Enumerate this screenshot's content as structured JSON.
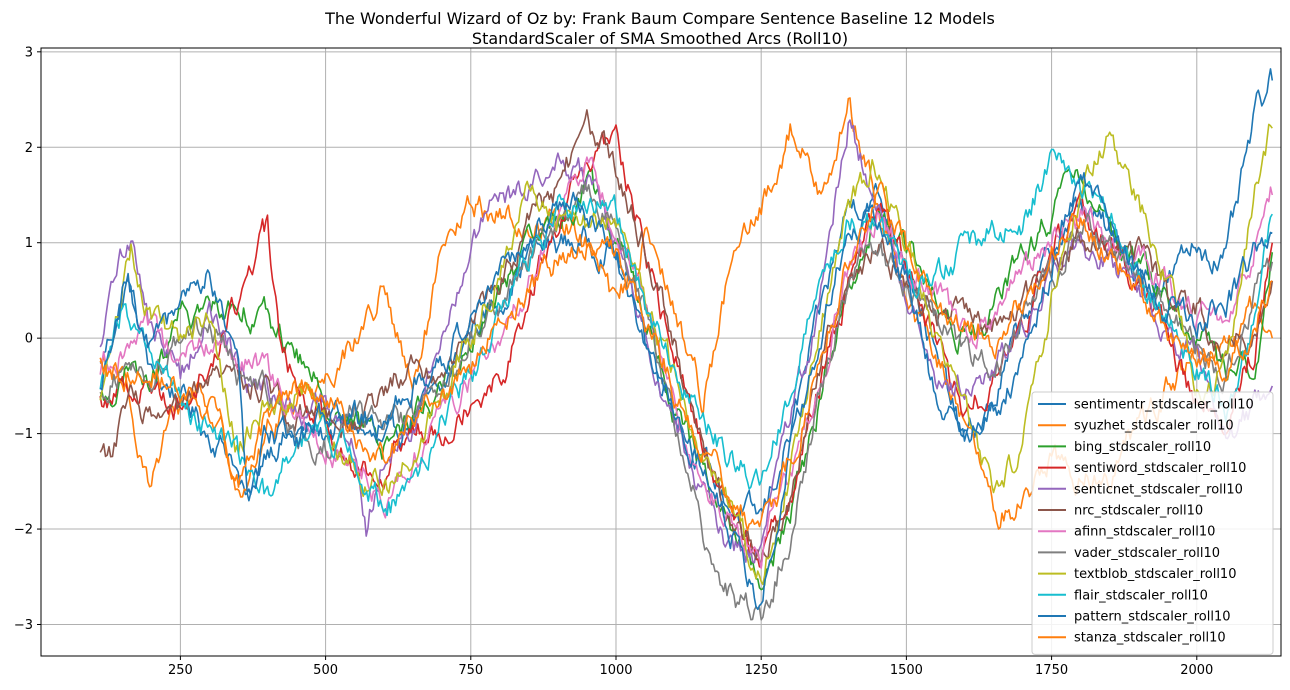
{
  "chart_data": {
    "type": "line",
    "title": "The Wonderful Wizard of Oz by: Frank Baum Compare Sentence Baseline 12 Models",
    "subtitle": "StandardScaler of SMA Smoothed Arcs (Roll10)",
    "xlabel": "",
    "ylabel": "",
    "xlim": [
      10,
      2145
    ],
    "ylim": [
      -3.33,
      3.04
    ],
    "xticks": [
      250,
      500,
      750,
      1000,
      1250,
      1500,
      1750,
      2000
    ],
    "xtick_labels": [
      "250",
      "500",
      "750",
      "1000",
      "1250",
      "1500",
      "1750",
      "2000"
    ],
    "yticks": [
      3,
      2,
      1,
      0,
      -1,
      -2,
      -3
    ],
    "ytick_labels": [
      "3",
      "2",
      "1",
      "0",
      "−1",
      "−2",
      "−3"
    ],
    "grid": true,
    "legend_position": "lower right",
    "series": [
      {
        "name": "sentimentr_stdscaler_roll10",
        "color": "#1f77b4",
        "x": [
          112,
          160,
          200,
          250,
          300,
          340,
          365,
          400,
          450,
          500,
          550,
          600,
          650,
          700,
          750,
          800,
          850,
          900,
          950,
          1000,
          1050,
          1100,
          1150,
          1200,
          1250,
          1300,
          1350,
          1400,
          1450,
          1500,
          1550,
          1600,
          1650,
          1700,
          1750,
          1800,
          1850,
          1900,
          1950,
          2000,
          2050,
          2100,
          2130
        ],
        "y": [
          -0.3,
          0.6,
          -0.4,
          -0.6,
          -1.0,
          -1.2,
          -1.8,
          -1.1,
          -1.0,
          -1.0,
          -0.9,
          -1.2,
          -0.8,
          -0.6,
          0.1,
          0.4,
          0.9,
          1.0,
          1.0,
          0.9,
          0.0,
          -0.7,
          -1.3,
          -1.8,
          -1.9,
          -1.0,
          0.2,
          1.4,
          1.5,
          0.9,
          -0.2,
          -1.1,
          -0.7,
          0.2,
          0.9,
          1.4,
          1.1,
          0.7,
          0.6,
          1.0,
          0.8,
          2.3,
          2.7
        ]
      },
      {
        "name": "syuzhet_stdscaler_roll10",
        "color": "#ff7f0e",
        "x": [
          112,
          150,
          200,
          240,
          280,
          320,
          360,
          400,
          450,
          500,
          550,
          600,
          650,
          700,
          750,
          800,
          850,
          900,
          950,
          1000,
          1050,
          1100,
          1150,
          1200,
          1250,
          1300,
          1350,
          1400,
          1450,
          1500,
          1550,
          1600,
          1650,
          1700,
          1750,
          1800,
          1850,
          1900,
          1950,
          2000,
          2050,
          2100,
          2130
        ],
        "y": [
          -0.3,
          -0.5,
          -1.5,
          -0.8,
          -0.5,
          -1.0,
          -1.6,
          -1.0,
          -0.6,
          -0.4,
          0.0,
          0.5,
          -0.6,
          0.8,
          1.4,
          1.3,
          1.1,
          1.3,
          1.0,
          0.3,
          1.1,
          0.3,
          -0.6,
          0.8,
          1.3,
          2.2,
          1.6,
          2.4,
          1.4,
          0.4,
          -0.2,
          -0.8,
          -1.9,
          -1.7,
          -1.2,
          -1.5,
          -1.4,
          -0.9,
          -0.5,
          -0.2,
          -0.2,
          0.3,
          0.0
        ]
      },
      {
        "name": "bing_stdscaler_roll10",
        "color": "#2ca02c",
        "x": [
          112,
          160,
          200,
          250,
          300,
          350,
          400,
          450,
          500,
          550,
          600,
          650,
          700,
          750,
          800,
          850,
          900,
          950,
          1000,
          1050,
          1100,
          1150,
          1200,
          1250,
          1300,
          1350,
          1400,
          1450,
          1500,
          1550,
          1600,
          1650,
          1700,
          1750,
          1800,
          1850,
          1900,
          1950,
          2000,
          2050,
          2100,
          2130
        ],
        "y": [
          -0.7,
          -0.4,
          -0.5,
          0.2,
          0.3,
          0.4,
          0.2,
          -0.2,
          -0.6,
          -0.9,
          -1.1,
          -0.8,
          -0.5,
          -0.1,
          0.5,
          0.9,
          1.2,
          1.6,
          1.1,
          0.2,
          -0.7,
          -1.4,
          -2.0,
          -2.6,
          -1.8,
          -0.7,
          0.6,
          1.3,
          0.9,
          0.4,
          0.0,
          0.2,
          0.9,
          1.3,
          1.7,
          1.2,
          0.8,
          0.4,
          0.0,
          -0.3,
          -0.3,
          0.9
        ]
      },
      {
        "name": "sentiword_stdscaler_roll10",
        "color": "#d62728",
        "x": [
          112,
          150,
          200,
          250,
          300,
          350,
          380,
          400,
          420,
          450,
          500,
          550,
          600,
          650,
          700,
          750,
          800,
          850,
          900,
          950,
          1000,
          1050,
          1100,
          1150,
          1200,
          1250,
          1300,
          1350,
          1400,
          1450,
          1500,
          1550,
          1600,
          1650,
          1700,
          1750,
          1800,
          1850,
          1900,
          1950,
          2000,
          2050,
          2100,
          2130
        ],
        "y": [
          -0.7,
          -0.5,
          -0.5,
          -0.7,
          -0.3,
          0.4,
          0.9,
          1.1,
          0.0,
          -0.5,
          -0.8,
          -1.4,
          -1.3,
          -1.0,
          -0.9,
          -0.6,
          -0.4,
          0.4,
          1.2,
          1.8,
          2.1,
          0.9,
          -0.2,
          -1.1,
          -1.9,
          -2.3,
          -1.6,
          -0.5,
          0.6,
          1.4,
          0.8,
          0.0,
          -0.8,
          -0.4,
          0.1,
          0.9,
          1.4,
          1.0,
          0.5,
          0.0,
          -0.7,
          -0.8,
          -0.1,
          1.0
        ]
      },
      {
        "name": "senticnet_stdscaler_roll10",
        "color": "#9467bd",
        "x": [
          112,
          140,
          165,
          200,
          250,
          300,
          350,
          400,
          450,
          500,
          550,
          570,
          600,
          650,
          700,
          750,
          800,
          850,
          900,
          950,
          1000,
          1050,
          1100,
          1150,
          1200,
          1250,
          1300,
          1350,
          1400,
          1450,
          1500,
          1550,
          1600,
          1650,
          1700,
          1750,
          1800,
          1850,
          1900,
          1950,
          2000,
          2050,
          2100,
          2130
        ],
        "y": [
          -0.2,
          0.7,
          1.1,
          0.1,
          -0.4,
          0.3,
          -0.3,
          -0.6,
          -0.8,
          -0.7,
          -1.1,
          -2.0,
          -1.2,
          -0.9,
          -0.1,
          1.0,
          1.4,
          1.6,
          1.8,
          1.7,
          0.9,
          0.1,
          -0.9,
          -1.6,
          -2.2,
          -2.3,
          -0.8,
          0.3,
          2.3,
          1.4,
          0.5,
          -0.3,
          -0.5,
          -0.4,
          0.1,
          0.8,
          1.0,
          0.8,
          0.5,
          -0.1,
          -0.2,
          -1.1,
          -0.7,
          -0.5
        ]
      },
      {
        "name": "nrc_stdscaler_roll10",
        "color": "#8c564b",
        "x": [
          112,
          130,
          170,
          200,
          250,
          300,
          350,
          400,
          450,
          500,
          550,
          600,
          650,
          700,
          750,
          800,
          850,
          900,
          950,
          1000,
          1050,
          1100,
          1150,
          1200,
          1250,
          1300,
          1350,
          1400,
          1450,
          1500,
          1550,
          1600,
          1650,
          1700,
          1750,
          1800,
          1850,
          1900,
          1950,
          2000,
          2050,
          2100,
          2130
        ],
        "y": [
          -1.1,
          -1.2,
          -0.6,
          -0.9,
          -0.8,
          -0.5,
          -0.4,
          -0.5,
          -0.8,
          -0.7,
          -0.9,
          -0.6,
          -0.2,
          -0.4,
          0.2,
          0.6,
          1.2,
          1.6,
          2.2,
          1.8,
          1.0,
          0.0,
          -1.2,
          -2.0,
          -2.3,
          -1.7,
          -0.3,
          0.6,
          1.0,
          0.6,
          0.2,
          0.3,
          0.1,
          0.3,
          0.7,
          1.1,
          1.0,
          0.9,
          0.4,
          0.3,
          -0.1,
          0.1,
          0.6
        ]
      },
      {
        "name": "afinn_stdscaler_roll10",
        "color": "#e377c2",
        "x": [
          112,
          150,
          200,
          250,
          300,
          350,
          400,
          450,
          500,
          550,
          600,
          650,
          700,
          750,
          800,
          850,
          900,
          950,
          1000,
          1050,
          1100,
          1150,
          1200,
          1250,
          1300,
          1350,
          1400,
          1450,
          1500,
          1550,
          1600,
          1650,
          1700,
          1750,
          1800,
          1850,
          1900,
          1950,
          2000,
          2050,
          2100,
          2130
        ],
        "y": [
          -0.3,
          -0.1,
          0.0,
          -0.3,
          0.0,
          -0.2,
          -0.4,
          -0.9,
          -1.1,
          -1.2,
          -1.7,
          -1.3,
          -0.8,
          -0.4,
          -0.1,
          0.6,
          1.3,
          1.8,
          1.2,
          0.3,
          -0.6,
          -1.5,
          -2.0,
          -2.2,
          -1.5,
          -0.5,
          0.7,
          1.2,
          0.8,
          0.5,
          0.0,
          0.2,
          0.6,
          1.0,
          1.3,
          1.0,
          0.8,
          0.5,
          0.3,
          0.1,
          1.0,
          1.5
        ]
      },
      {
        "name": "vader_stdscaler_roll10",
        "color": "#7f7f7f",
        "x": [
          112,
          150,
          200,
          250,
          300,
          350,
          400,
          450,
          500,
          550,
          600,
          650,
          700,
          750,
          800,
          850,
          900,
          950,
          1000,
          1050,
          1100,
          1150,
          1200,
          1250,
          1300,
          1350,
          1400,
          1450,
          1500,
          1550,
          1600,
          1650,
          1700,
          1750,
          1800,
          1850,
          1900,
          1950,
          2000,
          2050,
          2100,
          2130
        ],
        "y": [
          -0.5,
          -0.3,
          -0.4,
          0.0,
          0.2,
          -0.4,
          -0.6,
          -1.0,
          -1.1,
          -0.7,
          -1.0,
          -0.8,
          -0.5,
          0.0,
          0.4,
          0.8,
          1.2,
          1.5,
          1.2,
          0.3,
          -0.9,
          -2.0,
          -2.7,
          -3.0,
          -2.0,
          -0.6,
          0.5,
          1.0,
          0.6,
          0.2,
          -0.2,
          -0.3,
          0.1,
          0.6,
          1.2,
          1.0,
          0.6,
          0.4,
          0.0,
          -0.4,
          0.5,
          0.8
        ]
      },
      {
        "name": "textblob_stdscaler_roll10",
        "color": "#bcbd22",
        "x": [
          112,
          165,
          200,
          250,
          300,
          350,
          400,
          450,
          500,
          550,
          600,
          650,
          700,
          750,
          800,
          850,
          900,
          950,
          1000,
          1050,
          1100,
          1150,
          1200,
          1250,
          1300,
          1350,
          1400,
          1450,
          1500,
          1550,
          1600,
          1650,
          1700,
          1750,
          1800,
          1850,
          1900,
          1950,
          2000,
          2050,
          2100,
          2130
        ],
        "y": [
          -0.6,
          1.0,
          0.2,
          0.0,
          0.2,
          -1.2,
          -0.7,
          -0.5,
          -0.9,
          -1.3,
          -1.6,
          -1.2,
          -0.6,
          0.0,
          0.8,
          1.6,
          1.3,
          1.2,
          1.2,
          0.4,
          -0.4,
          -1.3,
          -1.8,
          -2.5,
          -1.4,
          0.0,
          1.5,
          1.8,
          1.0,
          0.1,
          -0.7,
          -1.6,
          -1.1,
          0.4,
          1.5,
          2.1,
          1.4,
          0.6,
          -0.5,
          -0.4,
          1.6,
          2.2
        ]
      },
      {
        "name": "flair_stdscaler_roll10",
        "color": "#17becf",
        "x": [
          112,
          150,
          200,
          250,
          300,
          350,
          400,
          450,
          500,
          550,
          600,
          650,
          700,
          750,
          800,
          850,
          900,
          950,
          1000,
          1050,
          1100,
          1150,
          1200,
          1250,
          1300,
          1350,
          1400,
          1450,
          1500,
          1550,
          1600,
          1650,
          1700,
          1750,
          1800,
          1850,
          1900,
          1950,
          2000,
          2050,
          2100,
          2130
        ],
        "y": [
          -0.5,
          0.3,
          -0.2,
          -0.6,
          -1.0,
          -1.3,
          -1.7,
          -1.1,
          -0.9,
          -1.3,
          -1.8,
          -1.6,
          -0.9,
          -0.4,
          0.2,
          0.8,
          1.3,
          1.5,
          1.3,
          0.4,
          -0.3,
          -0.9,
          -1.3,
          -1.4,
          -0.5,
          0.5,
          1.2,
          1.2,
          0.6,
          0.6,
          0.9,
          1.1,
          1.2,
          1.9,
          1.5,
          1.3,
          0.6,
          0.2,
          -0.3,
          -0.7,
          0.3,
          1.3
        ]
      },
      {
        "name": "pattern_stdscaler_roll10",
        "color": "#1f77b4",
        "x": [
          112,
          150,
          200,
          250,
          300,
          350,
          365,
          400,
          450,
          500,
          550,
          600,
          650,
          700,
          750,
          800,
          850,
          900,
          950,
          1000,
          1050,
          1100,
          1150,
          1200,
          1250,
          1300,
          1350,
          1400,
          1450,
          1500,
          1550,
          1600,
          1650,
          1700,
          1750,
          1800,
          1850,
          1900,
          1950,
          2000,
          2050,
          2100,
          2130
        ],
        "y": [
          -0.5,
          0.5,
          -0.1,
          0.3,
          0.7,
          -0.4,
          -1.7,
          -1.0,
          -1.1,
          -0.8,
          -0.8,
          -0.9,
          -0.5,
          -0.3,
          0.3,
          0.7,
          1.1,
          1.4,
          1.3,
          0.8,
          -0.1,
          -0.8,
          -1.4,
          -2.0,
          -2.8,
          -1.2,
          0.0,
          1.2,
          1.2,
          0.6,
          -0.6,
          -1.0,
          -0.8,
          -0.2,
          0.7,
          1.8,
          1.2,
          0.6,
          0.4,
          0.2,
          0.3,
          0.9,
          1.1
        ]
      },
      {
        "name": "stanza_stdscaler_roll10",
        "color": "#ff7f0e",
        "x": [
          112,
          150,
          200,
          250,
          300,
          350,
          400,
          450,
          500,
          550,
          600,
          650,
          700,
          750,
          800,
          850,
          900,
          950,
          1000,
          1050,
          1100,
          1150,
          1200,
          1250,
          1300,
          1350,
          1400,
          1450,
          1500,
          1550,
          1600,
          1650,
          1700,
          1750,
          1800,
          1850,
          1900,
          1950,
          2000,
          2050,
          2100,
          2130
        ],
        "y": [
          -0.2,
          -0.4,
          -0.3,
          -0.6,
          -0.7,
          -1.5,
          -0.8,
          -0.6,
          -0.5,
          -1.0,
          -1.3,
          -0.9,
          -0.6,
          -0.3,
          0.2,
          0.4,
          0.8,
          1.0,
          0.9,
          0.2,
          -0.5,
          -1.1,
          -1.6,
          -2.0,
          -1.3,
          -0.2,
          0.8,
          1.6,
          0.9,
          0.3,
          0.2,
          0.0,
          0.3,
          0.9,
          1.2,
          0.9,
          0.5,
          0.1,
          -0.1,
          -0.3,
          0.2,
          0.6
        ]
      }
    ]
  }
}
